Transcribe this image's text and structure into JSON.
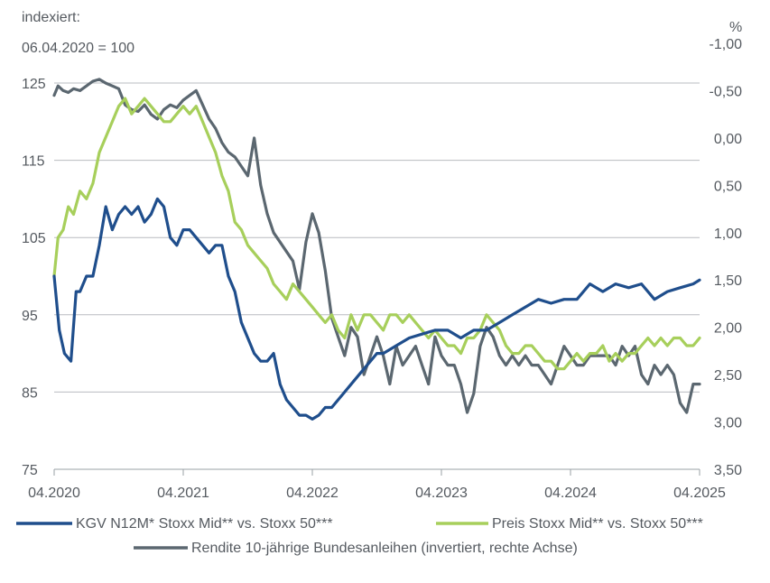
{
  "chart_data": {
    "type": "line",
    "left_axis_label_line1": "indexiert:",
    "left_axis_label_line2": "06.04.2020 = 100",
    "right_axis_unit": "%",
    "left_ylim": [
      75,
      125
    ],
    "left_ticks": [
      "125",
      "115",
      "105",
      "95",
      "85",
      "75"
    ],
    "right_ylim": [
      -1.0,
      3.5
    ],
    "right_ticks": [
      "-1,00",
      "-0,50",
      "0,00",
      "0,50",
      "1,00",
      "1,50",
      "2,00",
      "2,50",
      "3,00",
      "3,50"
    ],
    "x_ticks": [
      "04.2020",
      "04.2021",
      "04.2022",
      "04.2023",
      "04.2024",
      "04.2025"
    ],
    "xlim": [
      2020.25,
      2025.25
    ],
    "grid": "horizontal",
    "legend": "bottom",
    "colors": {
      "kgv": "#1f4e8c",
      "preis": "#a7cf5b",
      "rendite": "#5b6770"
    },
    "series": [
      {
        "name": "KGV N12M* Stoxx Mid** vs. Stoxx 50***",
        "axis": "left",
        "color": "#1f4e8c",
        "x": [
          2020.25,
          2020.29,
          2020.33,
          2020.38,
          2020.42,
          2020.45,
          2020.5,
          2020.55,
          2020.6,
          2020.65,
          2020.7,
          2020.75,
          2020.8,
          2020.85,
          2020.9,
          2020.95,
          2021.0,
          2021.05,
          2021.1,
          2021.15,
          2021.2,
          2021.25,
          2021.3,
          2021.35,
          2021.4,
          2021.45,
          2021.5,
          2021.55,
          2021.6,
          2021.65,
          2021.7,
          2021.75,
          2021.8,
          2021.85,
          2021.9,
          2021.95,
          2022.0,
          2022.05,
          2022.1,
          2022.15,
          2022.2,
          2022.25,
          2022.3,
          2022.35,
          2022.4,
          2022.45,
          2022.5,
          2022.55,
          2022.6,
          2022.65,
          2022.7,
          2022.75,
          2022.8,
          2022.9,
          2023.0,
          2023.1,
          2023.2,
          2023.3,
          2023.4,
          2023.5,
          2023.55,
          2023.6,
          2023.7,
          2023.8,
          2023.9,
          2024.0,
          2024.1,
          2024.2,
          2024.3,
          2024.4,
          2024.5,
          2024.6,
          2024.7,
          2024.8,
          2024.9,
          2025.0,
          2025.1,
          2025.2,
          2025.25
        ],
        "values": [
          100,
          93,
          90,
          89,
          98,
          98,
          100,
          100,
          104,
          109,
          106,
          108,
          109,
          108,
          109,
          107,
          108,
          110,
          109,
          105,
          104,
          106,
          106,
          105,
          104,
          103,
          104,
          104,
          100,
          98,
          94,
          92,
          90,
          89,
          89,
          90,
          86,
          84,
          83,
          82,
          82,
          81.5,
          82,
          83,
          83,
          84,
          85,
          86,
          87,
          88,
          89,
          90,
          90,
          91,
          92,
          92.5,
          93,
          93,
          92,
          93,
          93,
          93,
          94,
          95,
          96,
          97,
          96.5,
          97,
          97,
          99,
          98,
          99,
          98.5,
          99,
          97,
          98,
          98.5,
          99,
          99.5
        ]
      },
      {
        "name": "Preis Stoxx Mid** vs. Stoxx 50***",
        "axis": "left",
        "color": "#a7cf5b",
        "x": [
          2020.25,
          2020.28,
          2020.32,
          2020.36,
          2020.4,
          2020.45,
          2020.5,
          2020.55,
          2020.6,
          2020.65,
          2020.7,
          2020.75,
          2020.8,
          2020.85,
          2020.9,
          2020.95,
          2021.0,
          2021.05,
          2021.1,
          2021.15,
          2021.2,
          2021.25,
          2021.3,
          2021.35,
          2021.4,
          2021.45,
          2021.5,
          2021.55,
          2021.6,
          2021.65,
          2021.7,
          2021.75,
          2021.8,
          2021.85,
          2021.9,
          2021.95,
          2022.0,
          2022.05,
          2022.1,
          2022.15,
          2022.2,
          2022.25,
          2022.3,
          2022.35,
          2022.4,
          2022.45,
          2022.5,
          2022.55,
          2022.6,
          2022.65,
          2022.7,
          2022.75,
          2022.8,
          2022.85,
          2022.9,
          2022.95,
          2023.0,
          2023.05,
          2023.1,
          2023.15,
          2023.2,
          2023.25,
          2023.3,
          2023.35,
          2023.4,
          2023.45,
          2023.5,
          2023.55,
          2023.6,
          2023.65,
          2023.7,
          2023.75,
          2023.8,
          2023.85,
          2023.9,
          2023.95,
          2024.0,
          2024.05,
          2024.1,
          2024.15,
          2024.2,
          2024.25,
          2024.3,
          2024.35,
          2024.4,
          2024.45,
          2024.5,
          2024.55,
          2024.6,
          2024.65,
          2024.7,
          2024.75,
          2024.8,
          2024.85,
          2024.9,
          2024.95,
          2025.0,
          2025.05,
          2025.1,
          2025.15,
          2025.2,
          2025.25
        ],
        "values": [
          100,
          105,
          106,
          109,
          108,
          111,
          110,
          112,
          116,
          118,
          120,
          122,
          123,
          121,
          122,
          123,
          122,
          121,
          120,
          120,
          121,
          122,
          121,
          122,
          120,
          118,
          116,
          113,
          111,
          107,
          106,
          104,
          103,
          102,
          101,
          99,
          98,
          97,
          99,
          98,
          97,
          96,
          95,
          94,
          95,
          93,
          92,
          95,
          93,
          95,
          95,
          94,
          93,
          95,
          95,
          94,
          95,
          94,
          93,
          92,
          93,
          92,
          91,
          91,
          90,
          92,
          92,
          93,
          95,
          94,
          93,
          91,
          90,
          90,
          91,
          91,
          90,
          89,
          89,
          88,
          88,
          89,
          90,
          89,
          90,
          90,
          91,
          89,
          90,
          89,
          90,
          90,
          91,
          92,
          91,
          92,
          91,
          92,
          92,
          91,
          91,
          92
        ]
      },
      {
        "name": "Rendite 10-jährige Bundesanleihen (invertiert, rechte Achse)",
        "axis": "right",
        "color": "#5b6770",
        "x": [
          2020.25,
          2020.28,
          2020.32,
          2020.36,
          2020.4,
          2020.45,
          2020.5,
          2020.55,
          2020.6,
          2020.65,
          2020.7,
          2020.75,
          2020.8,
          2020.85,
          2020.9,
          2020.95,
          2021.0,
          2021.05,
          2021.1,
          2021.15,
          2021.2,
          2021.25,
          2021.3,
          2021.35,
          2021.4,
          2021.45,
          2021.5,
          2021.55,
          2021.6,
          2021.65,
          2021.7,
          2021.75,
          2021.8,
          2021.85,
          2021.9,
          2021.95,
          2022.0,
          2022.05,
          2022.1,
          2022.15,
          2022.2,
          2022.25,
          2022.3,
          2022.35,
          2022.4,
          2022.45,
          2022.5,
          2022.55,
          2022.6,
          2022.65,
          2022.7,
          2022.75,
          2022.8,
          2022.85,
          2022.9,
          2022.95,
          2023.0,
          2023.05,
          2023.1,
          2023.15,
          2023.2,
          2023.25,
          2023.3,
          2023.35,
          2023.4,
          2023.45,
          2023.5,
          2023.55,
          2023.6,
          2023.65,
          2023.7,
          2023.75,
          2023.8,
          2023.85,
          2023.9,
          2023.95,
          2024.0,
          2024.05,
          2024.1,
          2024.15,
          2024.2,
          2024.25,
          2024.3,
          2024.35,
          2024.4,
          2024.45,
          2024.5,
          2024.55,
          2024.6,
          2024.65,
          2024.7,
          2024.75,
          2024.8,
          2024.85,
          2024.9,
          2024.95,
          2025.0,
          2025.05,
          2025.1,
          2025.15,
          2025.2,
          2025.25
        ],
        "values": [
          -0.45,
          -0.55,
          -0.5,
          -0.48,
          -0.52,
          -0.5,
          -0.55,
          -0.6,
          -0.62,
          -0.58,
          -0.55,
          -0.52,
          -0.35,
          -0.3,
          -0.28,
          -0.35,
          -0.25,
          -0.2,
          -0.3,
          -0.35,
          -0.32,
          -0.4,
          -0.45,
          -0.5,
          -0.35,
          -0.2,
          -0.1,
          0.05,
          0.15,
          0.2,
          0.3,
          0.4,
          0.0,
          0.5,
          0.8,
          1.0,
          1.1,
          1.2,
          1.3,
          1.6,
          1.1,
          0.8,
          1.0,
          1.4,
          1.9,
          2.1,
          2.3,
          2.0,
          2.1,
          2.5,
          2.3,
          2.1,
          2.3,
          2.6,
          2.2,
          2.4,
          2.3,
          2.2,
          2.4,
          2.6,
          2.1,
          2.3,
          2.4,
          2.4,
          2.6,
          2.9,
          2.7,
          2.2,
          2.0,
          2.1,
          2.3,
          2.4,
          2.3,
          2.4,
          2.3,
          2.4,
          2.4,
          2.5,
          2.6,
          2.4,
          2.2,
          2.3,
          2.4,
          2.4,
          2.3,
          2.3,
          2.3,
          2.3,
          2.4,
          2.2,
          2.3,
          2.2,
          2.5,
          2.6,
          2.4,
          2.5,
          2.4,
          2.5,
          2.8,
          2.9,
          2.6,
          2.6
        ]
      }
    ]
  }
}
